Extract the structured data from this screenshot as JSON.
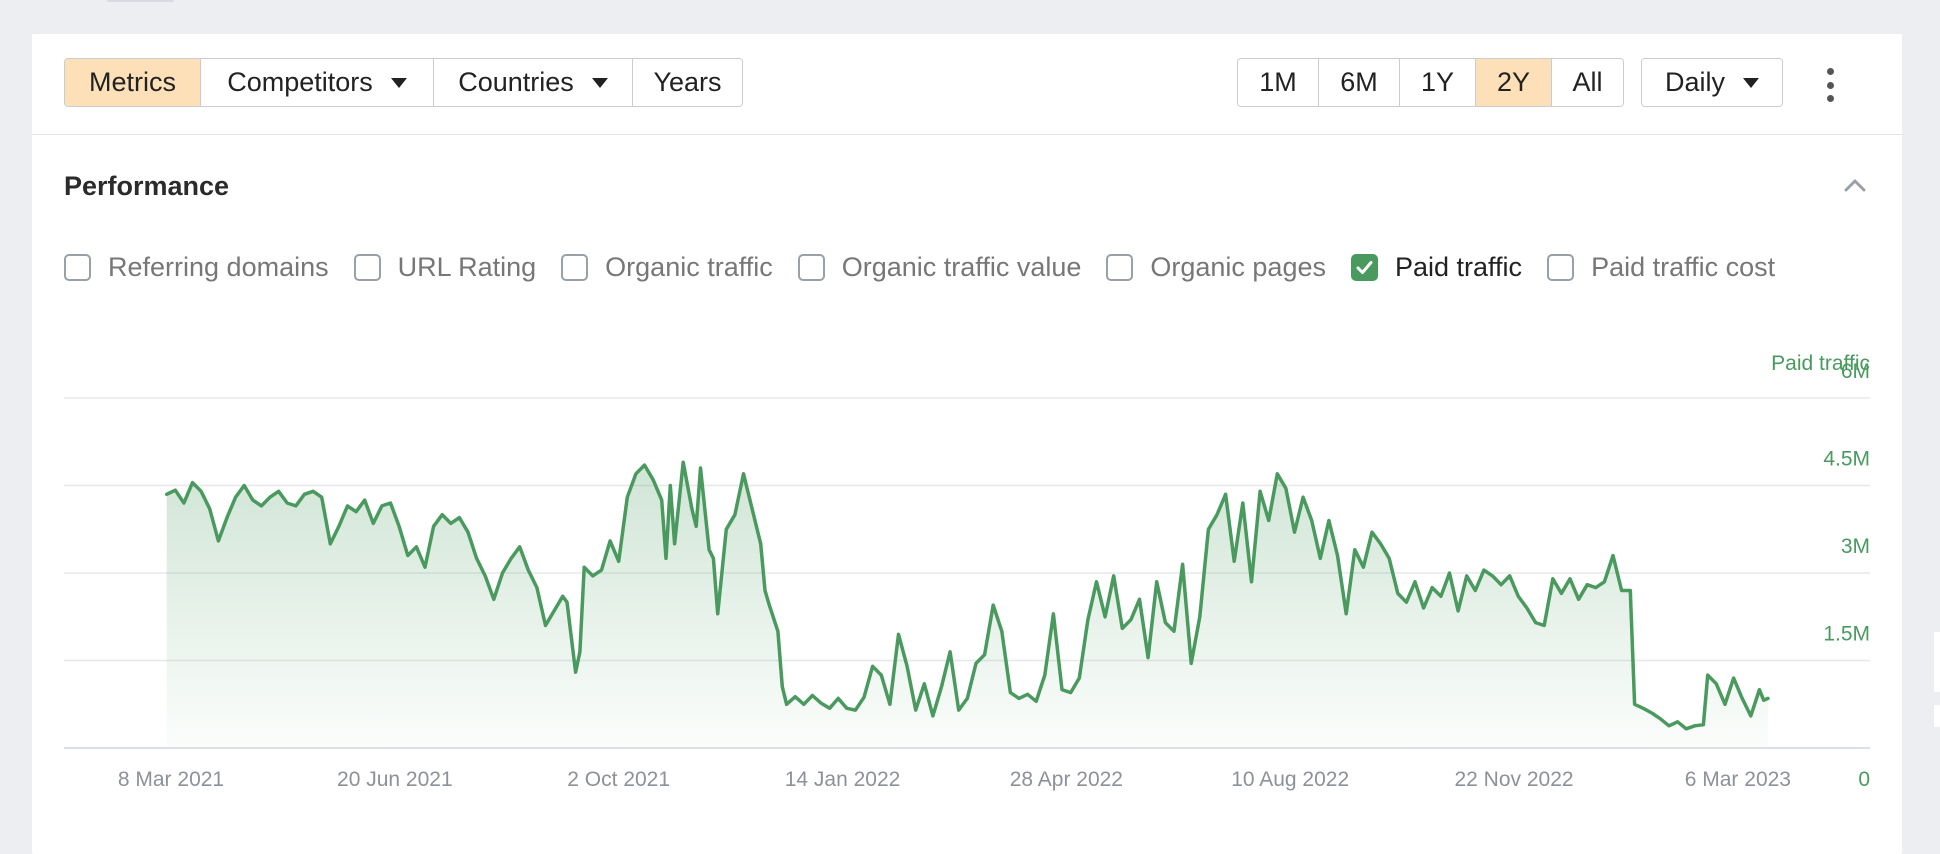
{
  "toolbar": {
    "left_buttons": [
      {
        "label": "Metrics",
        "active": true
      },
      {
        "label": "Competitors",
        "dropdown": true
      },
      {
        "label": "Countries",
        "dropdown": true
      },
      {
        "label": "Years"
      }
    ],
    "range_buttons": [
      {
        "label": "1M"
      },
      {
        "label": "6M"
      },
      {
        "label": "1Y"
      },
      {
        "label": "2Y",
        "active": true
      },
      {
        "label": "All"
      }
    ],
    "granularity": {
      "label": "Daily"
    },
    "more_icon": "kebab-vertical-icon"
  },
  "performance": {
    "title": "Performance",
    "collapse_icon": "chevron-up-icon",
    "metrics": [
      {
        "label": "Referring domains",
        "checked": false
      },
      {
        "label": "URL Rating",
        "checked": false
      },
      {
        "label": "Organic traffic",
        "checked": false
      },
      {
        "label": "Organic traffic value",
        "checked": false
      },
      {
        "label": "Organic pages",
        "checked": false
      },
      {
        "label": "Paid traffic",
        "checked": true
      },
      {
        "label": "Paid traffic cost",
        "checked": false
      }
    ]
  },
  "colors": {
    "accent": "#4a9a5f",
    "active_button": "#fde0b8"
  },
  "chart_data": {
    "type": "area",
    "ylabel": "Paid traffic",
    "ylim": [
      0,
      6000000
    ],
    "y_ticks": [
      {
        "value": 0,
        "label": "0"
      },
      {
        "value": 1500000,
        "label": "1.5M"
      },
      {
        "value": 3000000,
        "label": "3M"
      },
      {
        "value": 4500000,
        "label": "4.5M"
      },
      {
        "value": 6000000,
        "label": "6M"
      }
    ],
    "x_range": [
      "2021-03-08",
      "2023-03-20"
    ],
    "x_ticks": [
      {
        "date": "2021-03-08",
        "label": "8 Mar 2021"
      },
      {
        "date": "2021-06-20",
        "label": "20 Jun 2021"
      },
      {
        "date": "2021-10-02",
        "label": "2 Oct 2021"
      },
      {
        "date": "2022-01-14",
        "label": "14 Jan 2022"
      },
      {
        "date": "2022-04-28",
        "label": "28 Apr 2022"
      },
      {
        "date": "2022-08-10",
        "label": "10 Aug 2022"
      },
      {
        "date": "2022-11-22",
        "label": "22 Nov 2022"
      },
      {
        "date": "2023-03-06",
        "label": "6 Mar 2023"
      }
    ],
    "grid": true,
    "series": [
      {
        "name": "Paid traffic",
        "points": [
          [
            "2021-03-06",
            4350000
          ],
          [
            "2021-03-10",
            4420000
          ],
          [
            "2021-03-14",
            4200000
          ],
          [
            "2021-03-18",
            4550000
          ],
          [
            "2021-03-22",
            4400000
          ],
          [
            "2021-03-26",
            4100000
          ],
          [
            "2021-03-30",
            3550000
          ],
          [
            "2021-04-03",
            3950000
          ],
          [
            "2021-04-07",
            4300000
          ],
          [
            "2021-04-11",
            4500000
          ],
          [
            "2021-04-15",
            4250000
          ],
          [
            "2021-04-19",
            4150000
          ],
          [
            "2021-04-23",
            4300000
          ],
          [
            "2021-04-27",
            4400000
          ],
          [
            "2021-05-01",
            4200000
          ],
          [
            "2021-05-05",
            4150000
          ],
          [
            "2021-05-09",
            4350000
          ],
          [
            "2021-05-13",
            4400000
          ],
          [
            "2021-05-17",
            4300000
          ],
          [
            "2021-05-21",
            3500000
          ],
          [
            "2021-05-25",
            3800000
          ],
          [
            "2021-05-29",
            4150000
          ],
          [
            "2021-06-02",
            4050000
          ],
          [
            "2021-06-06",
            4250000
          ],
          [
            "2021-06-10",
            3850000
          ],
          [
            "2021-06-14",
            4150000
          ],
          [
            "2021-06-18",
            4200000
          ],
          [
            "2021-06-22",
            3800000
          ],
          [
            "2021-06-26",
            3300000
          ],
          [
            "2021-06-30",
            3450000
          ],
          [
            "2021-07-04",
            3100000
          ],
          [
            "2021-07-08",
            3800000
          ],
          [
            "2021-07-12",
            4000000
          ],
          [
            "2021-07-16",
            3850000
          ],
          [
            "2021-07-20",
            3950000
          ],
          [
            "2021-07-24",
            3700000
          ],
          [
            "2021-07-28",
            3250000
          ],
          [
            "2021-08-01",
            2950000
          ],
          [
            "2021-08-05",
            2550000
          ],
          [
            "2021-08-09",
            3000000
          ],
          [
            "2021-08-13",
            3250000
          ],
          [
            "2021-08-17",
            3450000
          ],
          [
            "2021-08-21",
            3050000
          ],
          [
            "2021-08-25",
            2750000
          ],
          [
            "2021-08-29",
            2100000
          ],
          [
            "2021-09-02",
            2350000
          ],
          [
            "2021-09-06",
            2600000
          ],
          [
            "2021-09-08",
            2500000
          ],
          [
            "2021-09-12",
            1300000
          ],
          [
            "2021-09-14",
            1650000
          ],
          [
            "2021-09-16",
            3100000
          ],
          [
            "2021-09-20",
            2950000
          ],
          [
            "2021-09-24",
            3050000
          ],
          [
            "2021-09-28",
            3550000
          ],
          [
            "2021-10-02",
            3200000
          ],
          [
            "2021-10-06",
            4300000
          ],
          [
            "2021-10-10",
            4700000
          ],
          [
            "2021-10-14",
            4850000
          ],
          [
            "2021-10-18",
            4600000
          ],
          [
            "2021-10-22",
            4250000
          ],
          [
            "2021-10-24",
            3250000
          ],
          [
            "2021-10-26",
            4500000
          ],
          [
            "2021-10-28",
            3500000
          ],
          [
            "2021-11-01",
            4900000
          ],
          [
            "2021-11-05",
            4100000
          ],
          [
            "2021-11-07",
            3800000
          ],
          [
            "2021-11-09",
            4800000
          ],
          [
            "2021-11-13",
            3400000
          ],
          [
            "2021-11-15",
            3250000
          ],
          [
            "2021-11-17",
            2300000
          ],
          [
            "2021-11-21",
            3750000
          ],
          [
            "2021-11-25",
            4000000
          ],
          [
            "2021-11-29",
            4700000
          ],
          [
            "2021-12-03",
            4100000
          ],
          [
            "2021-12-07",
            3500000
          ],
          [
            "2021-12-09",
            2700000
          ],
          [
            "2021-12-11",
            2450000
          ],
          [
            "2021-12-15",
            2000000
          ],
          [
            "2021-12-17",
            1050000
          ],
          [
            "2021-12-19",
            750000
          ],
          [
            "2021-12-23",
            880000
          ],
          [
            "2021-12-27",
            750000
          ],
          [
            "2021-12-31",
            900000
          ],
          [
            "2022-01-04",
            770000
          ],
          [
            "2022-01-08",
            680000
          ],
          [
            "2022-01-12",
            850000
          ],
          [
            "2022-01-16",
            680000
          ],
          [
            "2022-01-20",
            650000
          ],
          [
            "2022-01-24",
            870000
          ],
          [
            "2022-01-28",
            1400000
          ],
          [
            "2022-02-01",
            1250000
          ],
          [
            "2022-02-05",
            750000
          ],
          [
            "2022-02-09",
            1950000
          ],
          [
            "2022-02-13",
            1400000
          ],
          [
            "2022-02-17",
            650000
          ],
          [
            "2022-02-21",
            1100000
          ],
          [
            "2022-02-25",
            550000
          ],
          [
            "2022-03-01",
            1050000
          ],
          [
            "2022-03-05",
            1650000
          ],
          [
            "2022-03-09",
            650000
          ],
          [
            "2022-03-13",
            850000
          ],
          [
            "2022-03-17",
            1450000
          ],
          [
            "2022-03-21",
            1600000
          ],
          [
            "2022-03-25",
            2450000
          ],
          [
            "2022-03-29",
            2000000
          ],
          [
            "2022-04-02",
            950000
          ],
          [
            "2022-04-06",
            850000
          ],
          [
            "2022-04-10",
            920000
          ],
          [
            "2022-04-14",
            800000
          ],
          [
            "2022-04-18",
            1250000
          ],
          [
            "2022-04-22",
            2300000
          ],
          [
            "2022-04-26",
            1000000
          ],
          [
            "2022-04-30",
            950000
          ],
          [
            "2022-05-04",
            1200000
          ],
          [
            "2022-05-08",
            2200000
          ],
          [
            "2022-05-12",
            2850000
          ],
          [
            "2022-05-16",
            2250000
          ],
          [
            "2022-05-20",
            2950000
          ],
          [
            "2022-05-24",
            2050000
          ],
          [
            "2022-05-28",
            2200000
          ],
          [
            "2022-06-01",
            2550000
          ],
          [
            "2022-06-05",
            1550000
          ],
          [
            "2022-06-09",
            2850000
          ],
          [
            "2022-06-13",
            2150000
          ],
          [
            "2022-06-17",
            2000000
          ],
          [
            "2022-06-21",
            3150000
          ],
          [
            "2022-06-25",
            1450000
          ],
          [
            "2022-06-29",
            2250000
          ],
          [
            "2022-07-03",
            3750000
          ],
          [
            "2022-07-07",
            4000000
          ],
          [
            "2022-07-11",
            4350000
          ],
          [
            "2022-07-15",
            3200000
          ],
          [
            "2022-07-19",
            4200000
          ],
          [
            "2022-07-23",
            2850000
          ],
          [
            "2022-07-27",
            4400000
          ],
          [
            "2022-07-31",
            3900000
          ],
          [
            "2022-08-04",
            4700000
          ],
          [
            "2022-08-08",
            4450000
          ],
          [
            "2022-08-12",
            3700000
          ],
          [
            "2022-08-16",
            4300000
          ],
          [
            "2022-08-20",
            3900000
          ],
          [
            "2022-08-24",
            3250000
          ],
          [
            "2022-08-28",
            3900000
          ],
          [
            "2022-09-01",
            3300000
          ],
          [
            "2022-09-05",
            2300000
          ],
          [
            "2022-09-09",
            3400000
          ],
          [
            "2022-09-13",
            3100000
          ],
          [
            "2022-09-17",
            3700000
          ],
          [
            "2022-09-21",
            3500000
          ],
          [
            "2022-09-25",
            3250000
          ],
          [
            "2022-09-29",
            2650000
          ],
          [
            "2022-10-03",
            2500000
          ],
          [
            "2022-10-07",
            2850000
          ],
          [
            "2022-10-11",
            2400000
          ],
          [
            "2022-10-15",
            2750000
          ],
          [
            "2022-10-19",
            2600000
          ],
          [
            "2022-10-23",
            3000000
          ],
          [
            "2022-10-27",
            2350000
          ],
          [
            "2022-10-31",
            2950000
          ],
          [
            "2022-11-04",
            2700000
          ],
          [
            "2022-11-08",
            3050000
          ],
          [
            "2022-11-12",
            2950000
          ],
          [
            "2022-11-16",
            2800000
          ],
          [
            "2022-11-20",
            2950000
          ],
          [
            "2022-11-24",
            2600000
          ],
          [
            "2022-11-28",
            2400000
          ],
          [
            "2022-12-02",
            2150000
          ],
          [
            "2022-12-06",
            2100000
          ],
          [
            "2022-12-10",
            2900000
          ],
          [
            "2022-12-14",
            2650000
          ],
          [
            "2022-12-18",
            2900000
          ],
          [
            "2022-12-22",
            2550000
          ],
          [
            "2022-12-26",
            2800000
          ],
          [
            "2022-12-30",
            2750000
          ],
          [
            "2023-01-03",
            2850000
          ],
          [
            "2023-01-07",
            3300000
          ],
          [
            "2023-01-11",
            2700000
          ],
          [
            "2023-01-15",
            2700000
          ],
          [
            "2023-01-17",
            750000
          ],
          [
            "2023-01-21",
            680000
          ],
          [
            "2023-01-25",
            600000
          ],
          [
            "2023-01-29",
            500000
          ],
          [
            "2023-02-02",
            380000
          ],
          [
            "2023-02-06",
            450000
          ],
          [
            "2023-02-10",
            330000
          ],
          [
            "2023-02-14",
            380000
          ],
          [
            "2023-02-18",
            400000
          ],
          [
            "2023-02-20",
            1250000
          ],
          [
            "2023-02-24",
            1100000
          ],
          [
            "2023-02-28",
            750000
          ],
          [
            "2023-03-04",
            1200000
          ],
          [
            "2023-03-08",
            850000
          ],
          [
            "2023-03-12",
            550000
          ],
          [
            "2023-03-16",
            1000000
          ],
          [
            "2023-03-18",
            820000
          ],
          [
            "2023-03-20",
            850000
          ]
        ]
      }
    ]
  }
}
